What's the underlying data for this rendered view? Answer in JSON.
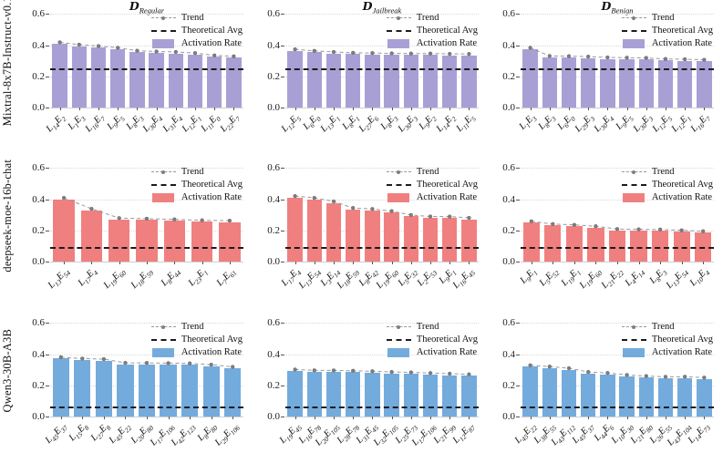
{
  "row_labels": [
    "Mixtral-8x7B-Instruct-v0.1",
    "deepseek-moe-16b-chat",
    "Qwen3-30B-A3B"
  ],
  "col_titles": [
    "D_Regular",
    "D_Jailbreak",
    "D_Benign"
  ],
  "legend": {
    "trend_label": "Trend",
    "theoretical_label": "Theoretical Avg",
    "activation_label": "Activation Rate"
  },
  "ytick_labels": [
    "0.0",
    "0.2",
    "0.4",
    "0.6"
  ],
  "colors": {
    "mixtral_bar": "#a8a0d5",
    "deepseek_bar": "#f08080",
    "qwen_bar": "#74abdd",
    "trend_line": "#999999",
    "trend_marker": "#7f7f7f",
    "theoretical_line": "#1c1c1c",
    "grid_line": "#d9d9d9"
  },
  "chart_data": [
    {
      "type": "bar",
      "model": "Mixtral-8x7B-Instruct-v0.1",
      "dataset": "D_Regular",
      "categories": [
        "L14E2",
        "L1E3",
        "L16E7",
        "L9E5",
        "L8E3",
        "L30E4",
        "L31E4",
        "L12E1",
        "L11E0",
        "L22E7"
      ],
      "values": [
        0.41,
        0.395,
        0.386,
        0.375,
        0.356,
        0.351,
        0.348,
        0.341,
        0.326,
        0.32
      ],
      "theoretical_avg": 0.25,
      "bar_color": "#a8a0d5",
      "ylim": [
        0,
        0.62
      ],
      "yticks": [
        0,
        0.2,
        0.4,
        0.6
      ],
      "legend": [
        "Trend",
        "Theoretical Avg",
        "Activation Rate"
      ],
      "legend_position": "upper right",
      "grid": true
    },
    {
      "type": "bar",
      "model": "Mixtral-8x7B-Instruct-v0.1",
      "dataset": "D_Jailbreak",
      "categories": [
        "L12E5",
        "L6E0",
        "L13E1",
        "L8E1",
        "L27E6",
        "L8E3",
        "L30E3",
        "L9E2",
        "L14E2",
        "L11E5"
      ],
      "values": [
        0.365,
        0.355,
        0.348,
        0.343,
        0.341,
        0.339,
        0.338,
        0.338,
        0.336,
        0.335
      ],
      "theoretical_avg": 0.25,
      "bar_color": "#a8a0d5",
      "ylim": [
        0,
        0.62
      ],
      "yticks": [
        0,
        0.2,
        0.4,
        0.6
      ],
      "legend": [
        "Trend",
        "Theoretical Avg",
        "Activation Rate"
      ],
      "legend_position": "upper right",
      "grid": true
    },
    {
      "type": "bar",
      "model": "Mixtral-8x7B-Instruct-v0.1",
      "dataset": "D_Benign",
      "categories": [
        "L1E3",
        "L8E3",
        "L6E0",
        "L29E3",
        "L30E4",
        "L9E5",
        "L30E3",
        "L12E5",
        "L12E1",
        "L16E7"
      ],
      "values": [
        0.375,
        0.322,
        0.321,
        0.318,
        0.313,
        0.311,
        0.31,
        0.303,
        0.301,
        0.298
      ],
      "theoretical_avg": 0.25,
      "bar_color": "#a8a0d5",
      "ylim": [
        0,
        0.62
      ],
      "yticks": [
        0,
        0.2,
        0.4,
        0.6
      ],
      "legend": [
        "Trend",
        "Theoretical Avg",
        "Activation Rate"
      ],
      "legend_position": "upper right",
      "grid": true
    },
    {
      "type": "bar",
      "model": "deepseek-moe-16b-chat",
      "dataset": "D_Regular",
      "categories": [
        "L13E54",
        "L17E4",
        "L19E60",
        "L18E59",
        "L8E44",
        "L23E1",
        "L7E61"
      ],
      "values": [
        0.4,
        0.33,
        0.27,
        0.267,
        0.262,
        0.256,
        0.254
      ],
      "theoretical_avg": 0.094,
      "bar_color": "#f08080",
      "ylim": [
        0,
        0.62
      ],
      "yticks": [
        0,
        0.2,
        0.4,
        0.6
      ],
      "legend": [
        "Trend",
        "Theoretical Avg",
        "Activation Rate"
      ],
      "legend_position": "upper right",
      "grid": true
    },
    {
      "type": "bar",
      "model": "deepseek-moe-16b-chat",
      "dataset": "D_Jailbreak",
      "categories": [
        "L17E4",
        "L13E54",
        "L3E14",
        "L18E59",
        "L8E42",
        "L19E60",
        "L5E32",
        "L2E53",
        "L9E1",
        "L16E45"
      ],
      "values": [
        0.412,
        0.4,
        0.377,
        0.335,
        0.329,
        0.315,
        0.29,
        0.281,
        0.28,
        0.272
      ],
      "theoretical_avg": 0.094,
      "bar_color": "#f08080",
      "ylim": [
        0,
        0.62
      ],
      "yticks": [
        0,
        0.2,
        0.4,
        0.6
      ],
      "legend": [
        "Trend",
        "Theoretical Avg",
        "Activation Rate"
      ],
      "legend_position": "upper right",
      "grid": true
    },
    {
      "type": "bar",
      "model": "deepseek-moe-16b-chat",
      "dataset": "D_Benign",
      "categories": [
        "L9E1",
        "L5E52",
        "L19E1",
        "L19E60",
        "L21E22",
        "L4E14",
        "L8E3",
        "L13E54",
        "L10E4"
      ],
      "values": [
        0.25,
        0.232,
        0.227,
        0.218,
        0.2,
        0.198,
        0.197,
        0.192,
        0.186
      ],
      "theoretical_avg": 0.094,
      "bar_color": "#f08080",
      "ylim": [
        0,
        0.62
      ],
      "yticks": [
        0,
        0.2,
        0.4,
        0.6
      ],
      "legend": [
        "Trend",
        "Theoretical Avg",
        "Activation Rate"
      ],
      "legend_position": "upper right",
      "grid": true
    },
    {
      "type": "bar",
      "model": "Qwen3-30B-A3B",
      "dataset": "D_Regular",
      "categories": [
        "L45E37",
        "L15E8",
        "L27E8",
        "L45E22",
        "L20E80",
        "L17E106",
        "L42E123",
        "L8E80",
        "L29E106"
      ],
      "values": [
        0.372,
        0.363,
        0.36,
        0.336,
        0.335,
        0.334,
        0.332,
        0.324,
        0.31
      ],
      "theoretical_avg": 0.063,
      "bar_color": "#74abdd",
      "ylim": [
        0,
        0.62
      ],
      "yticks": [
        0,
        0.2,
        0.4,
        0.6
      ],
      "legend": [
        "Trend",
        "Theoretical Avg",
        "Activation Rate"
      ],
      "legend_position": "upper right",
      "grid": true
    },
    {
      "type": "bar",
      "model": "Qwen3-30B-A3B",
      "dataset": "D_Jailbreak",
      "categories": [
        "L19E45",
        "L16E78",
        "L20E105",
        "L28E78",
        "L31E45",
        "L32E105",
        "L25E73",
        "L17E106",
        "L21E99",
        "L12E87"
      ],
      "values": [
        0.293,
        0.288,
        0.287,
        0.285,
        0.282,
        0.277,
        0.275,
        0.27,
        0.266,
        0.262
      ],
      "theoretical_avg": 0.063,
      "bar_color": "#74abdd",
      "ylim": [
        0,
        0.62
      ],
      "yticks": [
        0,
        0.2,
        0.4,
        0.6
      ],
      "legend": [
        "Trend",
        "Theoretical Avg",
        "Activation Rate"
      ],
      "legend_position": "upper right",
      "grid": true
    },
    {
      "type": "bar",
      "model": "Qwen3-30B-A3B",
      "dataset": "D_Benign",
      "categories": [
        "L45E22",
        "L38E55",
        "L43E112",
        "L45E37",
        "L44E6",
        "L10E30",
        "L21E80",
        "L26E55",
        "L43E104",
        "L14E73"
      ],
      "values": [
        0.32,
        0.312,
        0.301,
        0.277,
        0.271,
        0.258,
        0.251,
        0.246,
        0.247,
        0.241
      ],
      "theoretical_avg": 0.063,
      "bar_color": "#74abdd",
      "ylim": [
        0,
        0.62
      ],
      "yticks": [
        0,
        0.2,
        0.4,
        0.6
      ],
      "legend": [
        "Trend",
        "Theoretical Avg",
        "Activation Rate"
      ],
      "legend_position": "upper right",
      "grid": true
    }
  ]
}
